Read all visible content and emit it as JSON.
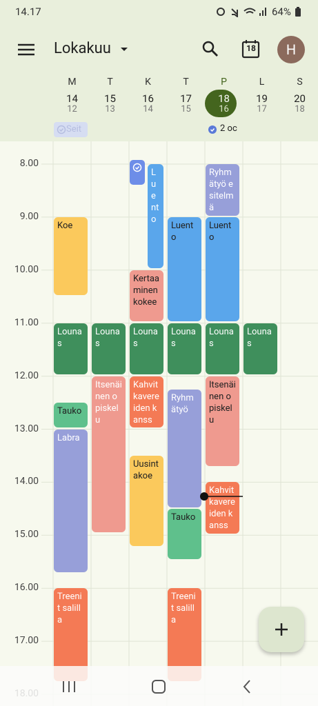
{
  "status": {
    "time": "14.17",
    "battery": "64%"
  },
  "header": {
    "month": "Lokakuu",
    "today": "18",
    "avatar": "H"
  },
  "days": [
    {
      "letter": "M",
      "date": "14",
      "week_date": "12"
    },
    {
      "letter": "T",
      "date": "15",
      "week_date": "13"
    },
    {
      "letter": "K",
      "date": "16",
      "week_date": "14"
    },
    {
      "letter": "T",
      "date": "17",
      "week_date": "15"
    },
    {
      "letter": "P",
      "date": "18",
      "week_date": "16"
    },
    {
      "letter": "L",
      "date": "19",
      "week_date": "17"
    },
    {
      "letter": "S",
      "date": "20",
      "week_date": "18"
    }
  ],
  "all_day": [
    "Seit",
    "2 oc"
  ],
  "hours": [
    "8.00",
    "9.00",
    "10.00",
    "11.00",
    "12.00",
    "13.00",
    "14.00",
    "15.00",
    "16.00",
    "17.00",
    "18.00"
  ],
  "events": [
    {
      "title": "Koe"
    },
    {
      "title": "Lounas"
    },
    {
      "title": "Tauko"
    },
    {
      "title": "Labra"
    },
    {
      "title": "Treenit salilla"
    },
    {
      "title": "Lounas"
    },
    {
      "title": "Itsenäinen opiskelu"
    },
    {
      "title": "Luento"
    },
    {
      "title": "Kertaaminen kokee"
    },
    {
      "title": "Lounas"
    },
    {
      "title": "Kahvit kavereiden kanss"
    },
    {
      "title": "Uusintakoe"
    },
    {
      "title": "Luento"
    },
    {
      "title": "Lounas"
    },
    {
      "title": "Ryhmätyö"
    },
    {
      "title": "Tauko"
    },
    {
      "title": "Treenit salilla"
    },
    {
      "title": "Ryhmätyö esitelmä"
    },
    {
      "title": "Luento"
    },
    {
      "title": "Lounas"
    },
    {
      "title": "Itsenäinen opiskelu"
    },
    {
      "title": "Kahvit kavereiden kanss"
    },
    {
      "title": "Lounas"
    }
  ]
}
